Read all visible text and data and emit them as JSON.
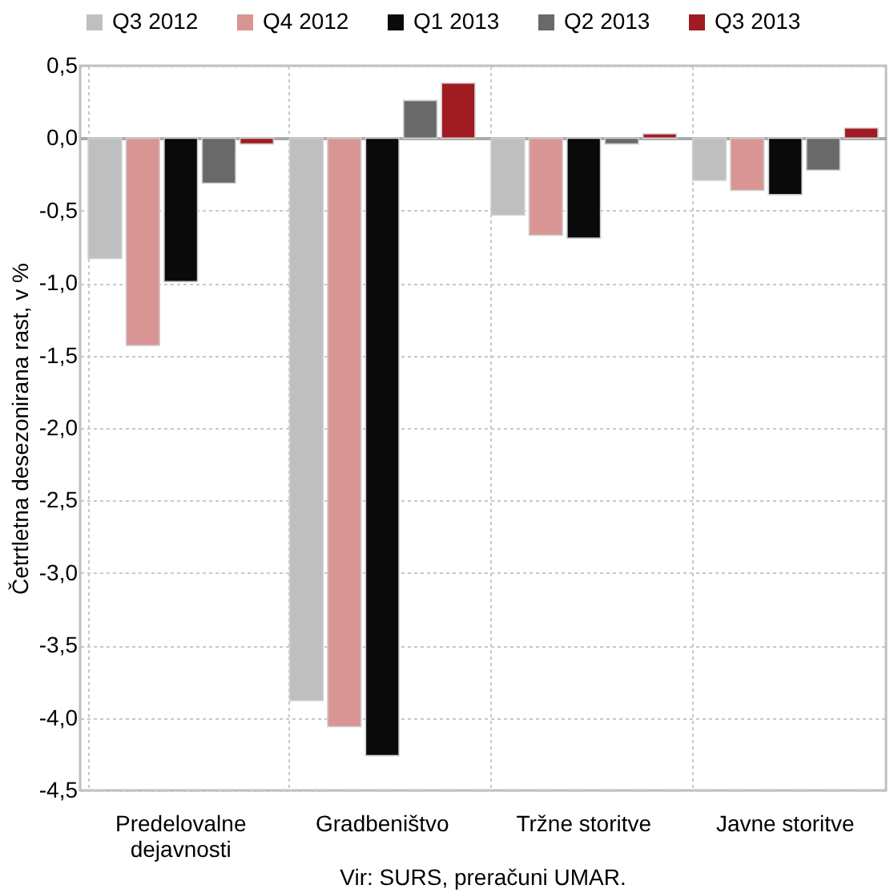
{
  "chart_data": {
    "type": "bar",
    "ylabel": "Četrtletna desezonirana rast, v %",
    "categories": [
      "Predelovalne dejavnosti",
      "Gradbeništvo",
      "Tržne storitve",
      "Javne storitve"
    ],
    "series": [
      {
        "name": "Q3 2012",
        "color": "#bfbfbf",
        "values": [
          -0.83,
          -3.88,
          -0.53,
          -0.29
        ]
      },
      {
        "name": "Q4 2012",
        "color": "#d99594",
        "values": [
          -1.43,
          -4.06,
          -0.67,
          -0.36
        ]
      },
      {
        "name": "Q1 2013",
        "color": "#0a0a0a",
        "values": [
          -0.99,
          -4.26,
          -0.69,
          -0.39
        ]
      },
      {
        "name": "Q2 2013",
        "color": "#696969",
        "values": [
          -0.31,
          0.26,
          -0.04,
          -0.22
        ]
      },
      {
        "name": "Q3 2013",
        "color": "#a01c22",
        "values": [
          -0.04,
          0.38,
          0.03,
          0.07
        ]
      }
    ],
    "ylim": [
      -4.5,
      0.5
    ],
    "yticks": [
      {
        "value": 0.5,
        "label": "0,5"
      },
      {
        "value": 0,
        "label": "0,0"
      },
      {
        "value": -0.5,
        "label": "-0,5"
      },
      {
        "value": -1,
        "label": "-1,0"
      },
      {
        "value": -1.5,
        "label": "-1,5"
      },
      {
        "value": -2,
        "label": "-2,0"
      },
      {
        "value": -2.5,
        "label": "-2,5"
      },
      {
        "value": -3,
        "label": "-3,0"
      },
      {
        "value": -3.5,
        "label": "-3,5"
      },
      {
        "value": -4,
        "label": "-4,0"
      },
      {
        "value": -4.5,
        "label": "-4,5"
      }
    ],
    "grid": true,
    "legend": "top",
    "annotations": [
      "Vir: SURS, preračuni UMAR."
    ]
  }
}
